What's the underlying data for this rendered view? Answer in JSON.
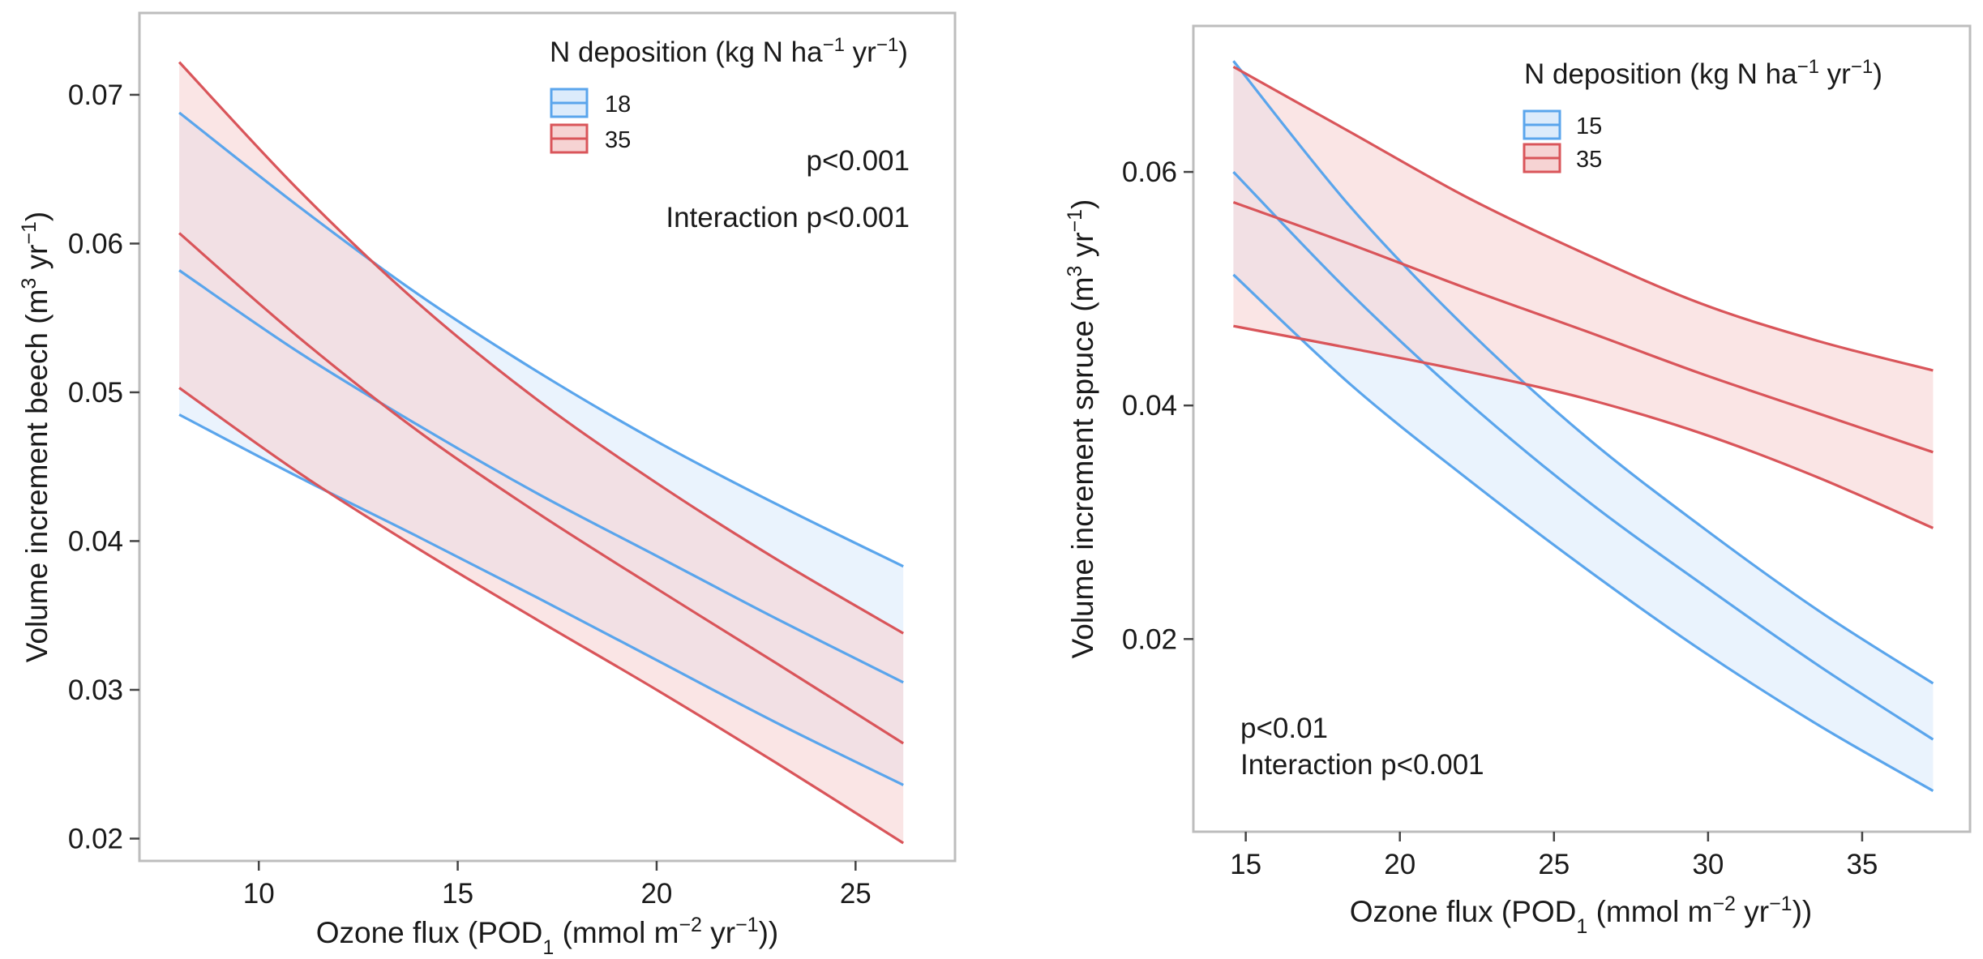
{
  "chart_data": [
    {
      "type": "line",
      "id": "beech",
      "title": "",
      "xlabel": {
        "prefix": "Ozone flux (POD",
        "sub": "1",
        "mid": " (mmol m",
        "sup": "−2",
        "mid2": " yr",
        "sup2": "−1",
        "suffix": "))"
      },
      "ylabel": {
        "prefix": "Volume increment beech (m",
        "sup": "3",
        "mid": " yr",
        "sup2": "−1",
        "suffix": ")"
      },
      "xlim": [
        7,
        27.5
      ],
      "ylim": [
        0.0185,
        0.0755
      ],
      "xticks": [
        10,
        15,
        20,
        25
      ],
      "xtick_labels": [
        "10",
        "15",
        "20",
        "25"
      ],
      "yticks": [
        0.02,
        0.03,
        0.04,
        0.05,
        0.06,
        0.07
      ],
      "ytick_labels": [
        "0.02",
        "0.03",
        "0.04",
        "0.05",
        "0.06",
        "0.07"
      ],
      "x": [
        8,
        11,
        14,
        17,
        20,
        23,
        26.2
      ],
      "legend": {
        "title": {
          "prefix": "N deposition (kg N ha",
          "sup": "−1",
          "mid": " yr",
          "sup2": "−1",
          "suffix": ")"
        },
        "position": "top-right"
      },
      "annotations": [
        "p<0.001",
        "Interaction p<0.001"
      ],
      "series": [
        {
          "name": "18",
          "color": "#5aa5ec",
          "fill": "#dcebfb",
          "fit": [
            0.0582,
            0.0527,
            0.0478,
            0.0432,
            0.039,
            0.0348,
            0.0305
          ],
          "upper": [
            0.0688,
            0.0625,
            0.0566,
            0.0514,
            0.0467,
            0.0425,
            0.0383
          ],
          "lower": [
            0.0485,
            0.0443,
            0.0403,
            0.0362,
            0.032,
            0.0278,
            0.0236
          ]
        },
        {
          "name": "35",
          "color": "#d9555a",
          "fill": "#f6d3d3",
          "fit": [
            0.0607,
            0.0537,
            0.0474,
            0.0419,
            0.0368,
            0.0318,
            0.0264
          ],
          "upper": [
            0.0722,
            0.0636,
            0.056,
            0.0495,
            0.0439,
            0.0388,
            0.0338
          ],
          "lower": [
            0.0503,
            0.0446,
            0.0395,
            0.0347,
            0.03,
            0.0251,
            0.0197
          ]
        }
      ]
    },
    {
      "type": "line",
      "id": "spruce",
      "title": "",
      "xlabel": {
        "prefix": "Ozone flux (POD",
        "sub": "1",
        "mid": " (mmol m",
        "sup": "−2",
        "mid2": " yr",
        "sup2": "−1",
        "suffix": "))"
      },
      "ylabel": {
        "prefix": "Volume increment spruce (m",
        "sup": "3",
        "mid": " yr",
        "sup2": "−1",
        "suffix": ")"
      },
      "xlim": [
        13.3,
        38.5
      ],
      "ylim": [
        0.0035,
        0.0725
      ],
      "xticks": [
        15,
        20,
        25,
        30,
        35
      ],
      "xtick_labels": [
        "15",
        "20",
        "25",
        "30",
        "35"
      ],
      "yticks": [
        0.02,
        0.04,
        0.06
      ],
      "ytick_labels": [
        "0.02",
        "0.04",
        "0.06"
      ],
      "x": [
        14.6,
        18.4,
        22.2,
        26.0,
        29.8,
        33.6,
        37.3
      ],
      "legend": {
        "title": {
          "prefix": "N deposition (kg N ha",
          "sup": "−1",
          "mid": " yr",
          "sup2": "−1",
          "suffix": ")"
        },
        "position": "top-right"
      },
      "annotations": [
        "p<0.01",
        "Interaction p<0.001"
      ],
      "series": [
        {
          "name": "15",
          "color": "#5aa5ec",
          "fill": "#dcebfb",
          "fit": [
            0.06,
            0.0496,
            0.0403,
            0.032,
            0.0247,
            0.0177,
            0.0114
          ],
          "upper": [
            0.0695,
            0.057,
            0.0465,
            0.0374,
            0.0296,
            0.0224,
            0.0162
          ],
          "lower": [
            0.0512,
            0.0418,
            0.0337,
            0.0261,
            0.019,
            0.0126,
            0.007
          ]
        },
        {
          "name": "35",
          "color": "#d9555a",
          "fill": "#f6d3d3",
          "fit": [
            0.0574,
            0.0538,
            0.05,
            0.0464,
            0.0427,
            0.0393,
            0.036
          ],
          "upper": [
            0.069,
            0.0634,
            0.0578,
            0.053,
            0.0487,
            0.0455,
            0.043
          ],
          "lower": [
            0.0468,
            0.0449,
            0.0429,
            0.0406,
            0.0376,
            0.0338,
            0.0295
          ]
        }
      ]
    }
  ]
}
